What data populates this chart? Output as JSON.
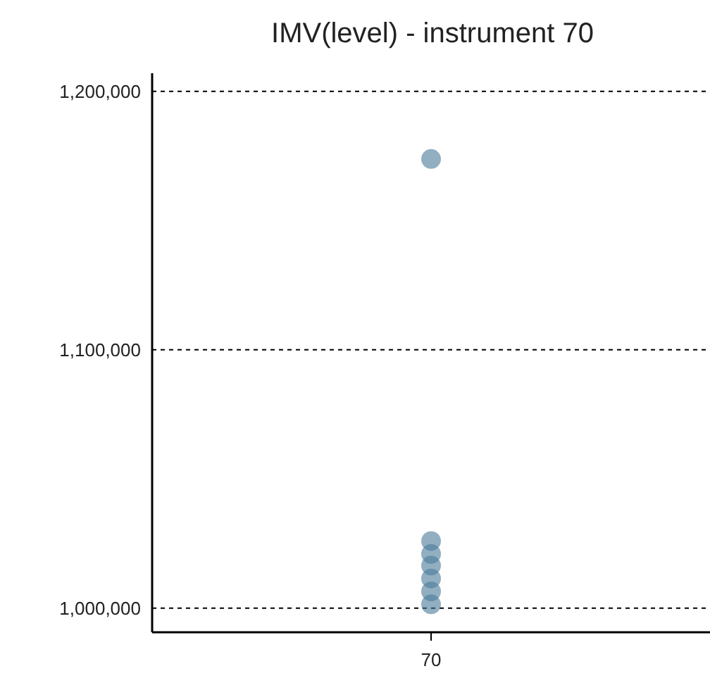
{
  "chart_data": {
    "type": "scatter",
    "title": "IMV(level) - instrument 70",
    "categories": [
      "70"
    ],
    "series": [
      {
        "color": "#4a7a99",
        "x": [
          "70",
          "70",
          "70",
          "70",
          "70",
          "70",
          "70"
        ],
        "values": [
          1173800,
          1026000,
          1021000,
          1016500,
          1011500,
          1006500,
          1001500
        ]
      }
    ],
    "ylim": [
      990700,
      1207000
    ],
    "yticks": [
      {
        "value": 1000000,
        "label": "1,000,000"
      },
      {
        "value": 1100000,
        "label": "1,100,000"
      },
      {
        "value": 1200000,
        "label": "1,200,000"
      }
    ],
    "grid": "y",
    "marker": "circle"
  }
}
